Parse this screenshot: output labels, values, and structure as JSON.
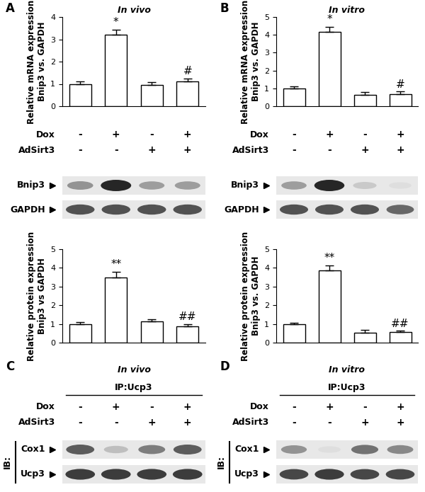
{
  "chart_data": [
    {
      "type": "bar",
      "panel": "A",
      "title": "In vivo",
      "y_label": "Relative mRNA expression\nBnip3 vs. GAPDH",
      "categories": [
        null,
        null,
        null,
        null
      ],
      "values": [
        1.0,
        3.22,
        0.95,
        1.12
      ],
      "errors": [
        0.12,
        0.22,
        0.13,
        0.12
      ],
      "significance": [
        null,
        "*",
        null,
        "#"
      ],
      "color": "#ffffff",
      "ylim": [
        0,
        4
      ],
      "yticks": [
        0,
        1,
        2,
        3,
        4
      ],
      "conditions": [
        {
          "name": "Dox",
          "values": [
            "-",
            "+",
            "-",
            "+"
          ]
        },
        {
          "name": "AdSirt3",
          "values": [
            "-",
            "-",
            "+",
            "+"
          ]
        }
      ]
    },
    {
      "type": "bar",
      "y_label": "Relative protein expression\nBnip3 vs GAPDH",
      "categories": [
        null,
        null,
        null,
        null
      ],
      "values": [
        1.0,
        3.48,
        1.12,
        0.88
      ],
      "errors": [
        0.08,
        0.32,
        0.12,
        0.1
      ],
      "significance": [
        null,
        "**",
        null,
        "##"
      ],
      "color": "#ffffff",
      "ylim": [
        0,
        5
      ],
      "yticks": [
        0,
        1,
        2,
        3,
        4,
        5
      ]
    },
    {
      "type": "bar",
      "panel": "B",
      "title": "In vitro",
      "y_label": "Relative mRNA expression\nBnip3 vs. GAPDH",
      "categories": [
        null,
        null,
        null,
        null
      ],
      "values": [
        1.0,
        4.15,
        0.62,
        0.68
      ],
      "errors": [
        0.12,
        0.3,
        0.17,
        0.15
      ],
      "significance": [
        null,
        "*",
        null,
        "#"
      ],
      "color": "#ffffff",
      "ylim": [
        0,
        5
      ],
      "yticks": [
        0,
        1,
        2,
        3,
        4,
        5
      ],
      "conditions": [
        {
          "name": "Dox",
          "values": [
            "-",
            "+",
            "-",
            "+"
          ]
        },
        {
          "name": "AdSirt3",
          "values": [
            "-",
            "-",
            "+",
            "+"
          ]
        }
      ]
    },
    {
      "type": "bar",
      "y_label": "Relative protein expression\nBnip3 vs. GAPDH",
      "categories": [
        null,
        null,
        null,
        null
      ],
      "values": [
        1.0,
        3.88,
        0.52,
        0.55
      ],
      "errors": [
        0.07,
        0.25,
        0.18,
        0.08
      ],
      "significance": [
        null,
        "**",
        null,
        "##"
      ],
      "color": "#ffffff",
      "ylim": [
        0,
        5
      ],
      "yticks": [
        0,
        1,
        2,
        3,
        4,
        5
      ]
    }
  ],
  "blots": [
    {
      "rows": [
        {
          "name": "Bnip3",
          "intensity": [
            0.5,
            1.0,
            0.45,
            0.45
          ]
        },
        {
          "name": "GAPDH",
          "intensity": [
            0.8,
            0.8,
            0.8,
            0.8
          ]
        }
      ]
    },
    {
      "rows": [
        {
          "name": "Bnip3",
          "intensity": [
            0.45,
            1.0,
            0.25,
            0.15
          ]
        },
        {
          "name": "GAPDH",
          "intensity": [
            0.8,
            0.8,
            0.8,
            0.7
          ]
        }
      ]
    },
    {
      "panel": "C",
      "title": "In vivo",
      "ip": "IP:Ucp3",
      "ib": "IB:",
      "conditions": [
        {
          "name": "Dox",
          "values": [
            "-",
            "+",
            "-",
            "+"
          ]
        },
        {
          "name": "AdSirt3",
          "values": [
            "-",
            "-",
            "+",
            "+"
          ]
        }
      ],
      "rows": [
        {
          "name": "Cox1",
          "intensity": [
            0.75,
            0.3,
            0.6,
            0.75
          ]
        },
        {
          "name": "Ucp3",
          "intensity": [
            0.9,
            0.9,
            0.9,
            0.9
          ]
        }
      ]
    },
    {
      "panel": "D",
      "title": "In vitro",
      "ip": "IP:Ucp3",
      "ib": "IB:",
      "conditions": [
        {
          "name": "Dox",
          "values": [
            "-",
            "+",
            "-",
            "+"
          ]
        },
        {
          "name": "AdSirt3",
          "values": [
            "-",
            "-",
            "+",
            "+"
          ]
        }
      ],
      "rows": [
        {
          "name": "Cox1",
          "intensity": [
            0.5,
            0.15,
            0.65,
            0.55
          ]
        },
        {
          "name": "Ucp3",
          "intensity": [
            0.85,
            0.9,
            0.85,
            0.85
          ]
        }
      ]
    }
  ]
}
